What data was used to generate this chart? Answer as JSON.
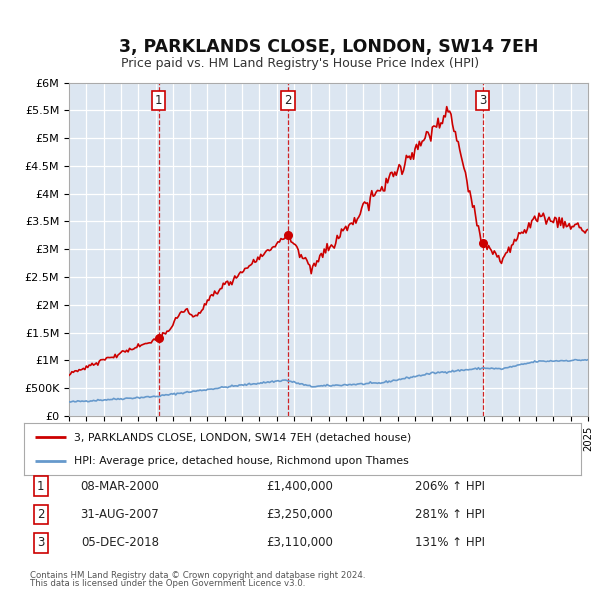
{
  "title": "3, PARKLANDS CLOSE, LONDON, SW14 7EH",
  "subtitle": "Price paid vs. HM Land Registry's House Price Index (HPI)",
  "hpi_label": "HPI: Average price, detached house, Richmond upon Thames",
  "property_label": "3, PARKLANDS CLOSE, LONDON, SW14 7EH (detached house)",
  "footer1": "Contains HM Land Registry data © Crown copyright and database right 2024.",
  "footer2": "This data is licensed under the Open Government Licence v3.0.",
  "transactions": [
    {
      "num": 1,
      "date": "08-MAR-2000",
      "price": "£1,400,000",
      "hpi_pct": "206% ↑ HPI",
      "year": 2000.19
    },
    {
      "num": 2,
      "date": "31-AUG-2007",
      "price": "£3,250,000",
      "hpi_pct": "281% ↑ HPI",
      "year": 2007.67
    },
    {
      "num": 3,
      "date": "05-DEC-2018",
      "price": "£3,110,000",
      "hpi_pct": "131% ↑ HPI",
      "year": 2018.92
    }
  ],
  "transaction_prices": [
    1400000,
    3250000,
    3110000
  ],
  "ylim": [
    0,
    6000000
  ],
  "yticks": [
    0,
    500000,
    1000000,
    1500000,
    2000000,
    2500000,
    3000000,
    3500000,
    4000000,
    4500000,
    5000000,
    5500000,
    6000000
  ],
  "ytick_labels": [
    "£0",
    "£500K",
    "£1M",
    "£1.5M",
    "£2M",
    "£2.5M",
    "£3M",
    "£3.5M",
    "£4M",
    "£4.5M",
    "£5M",
    "£5.5M",
    "£6M"
  ],
  "property_color": "#cc0000",
  "hpi_color": "#6699cc",
  "plot_bg_color": "#dce6f1",
  "grid_color": "#ffffff",
  "dashed_line_color": "#cc0000",
  "xmin": 1995,
  "xmax": 2025
}
